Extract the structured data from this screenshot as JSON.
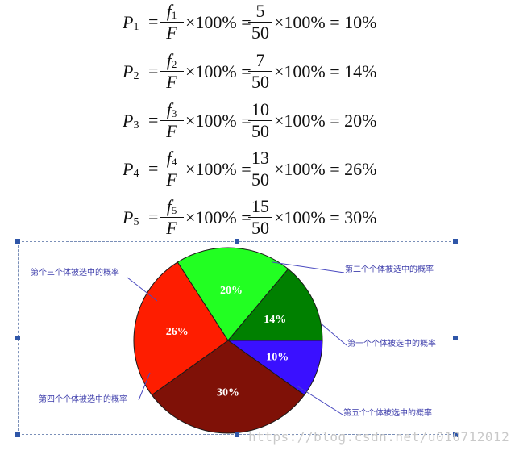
{
  "formulas": [
    {
      "lhs": "P",
      "sub": "1",
      "f": "f",
      "f_sub": "1",
      "den": "F",
      "times": "×100% =",
      "num": "5",
      "total": "50",
      "result": "×100% = 10%"
    },
    {
      "lhs": "P",
      "sub": "2",
      "f": "f",
      "f_sub": "2",
      "den": "F",
      "times": "×100% =",
      "num": "7",
      "total": "50",
      "result": "×100% = 14%"
    },
    {
      "lhs": "P",
      "sub": "3",
      "f": "f",
      "f_sub": "3",
      "den": "F",
      "times": "×100% =",
      "num": "10",
      "total": "50",
      "result": "×100% = 20%"
    },
    {
      "lhs": "P",
      "sub": "4",
      "f": "f",
      "f_sub": "4",
      "den": "F",
      "times": "×100% =",
      "num": "13",
      "total": "50",
      "result": "×100% = 26%"
    },
    {
      "lhs": "P",
      "sub": "5",
      "f": "f",
      "f_sub": "5",
      "den": "F",
      "times": "×100% =",
      "num": "15",
      "total": "50",
      "result": "×100% = 30%"
    }
  ],
  "chart_data": {
    "type": "pie",
    "title": "",
    "slices": [
      {
        "label": "第一个个体被选中的概率",
        "value": 10,
        "value_label": "10%",
        "color": "#3a10ff"
      },
      {
        "label": "第五个个体被选中的概率",
        "value": 30,
        "value_label": "30%",
        "color": "#7f1107"
      },
      {
        "label": "第四个个体被选中的概率",
        "value": 26,
        "value_label": "26%",
        "color": "#fe1d00"
      },
      {
        "label": "第个三个体被选中的概率",
        "value": 20,
        "value_label": "20%",
        "color": "#22ff22"
      },
      {
        "label": "第二个个体被选中的概率",
        "value": 14,
        "value_label": "14%",
        "color": "#008000"
      }
    ]
  },
  "watermark": "https://blog.csdn.net/u010712012"
}
